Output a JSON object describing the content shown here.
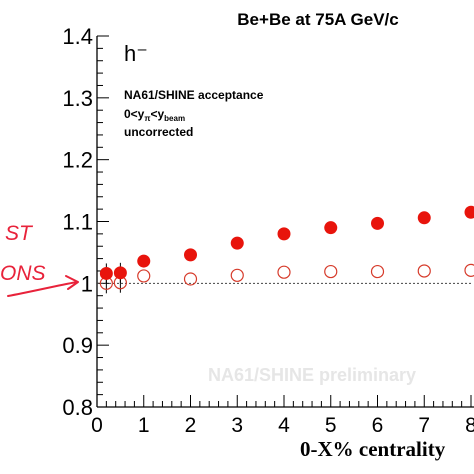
{
  "chart_data": {
    "type": "scatter",
    "title": "Be+Be at 75A GeV/c",
    "xlabel": "0-X% centrality",
    "ylabel": "",
    "xlim": [
      0,
      8
    ],
    "ylim": [
      0.8,
      1.4
    ],
    "x_ticks": [
      "0",
      "1",
      "2",
      "3",
      "4",
      "5",
      "6",
      "7",
      "8"
    ],
    "y_ticks": [
      "0.8",
      "0.9",
      "1",
      "1.1",
      "1.2",
      "1.3",
      "1.4"
    ],
    "reference_line": 1.0,
    "series": [
      {
        "marker": "filled-circle",
        "color": "#e8140c",
        "x": [
          0.2,
          0.5,
          1,
          2,
          3,
          4,
          5,
          6,
          7,
          8
        ],
        "y": [
          1.016,
          1.017,
          1.036,
          1.046,
          1.065,
          1.08,
          1.09,
          1.097,
          1.106,
          1.115
        ]
      },
      {
        "marker": "open-circle",
        "color": "#d63a2a",
        "x": [
          0.2,
          0.5,
          1,
          2,
          3,
          4,
          5,
          6,
          7,
          8
        ],
        "y": [
          1.0,
          1.001,
          1.012,
          1.007,
          1.013,
          1.018,
          1.019,
          1.019,
          1.02,
          1.021
        ]
      }
    ],
    "annotations": {
      "particle": "h⁻",
      "acceptance": "NA61/SHINE acceptance",
      "rapidity_parts": [
        "0<y",
        "π",
        "<y",
        "beam"
      ],
      "correction": "uncorrected",
      "watermark": "NA61/SHINE preliminary"
    },
    "handwritten": {
      "line1": "ST",
      "line2": "ONS",
      "color": "#e8223a"
    },
    "frame_color": "#000000",
    "grid": false
  }
}
